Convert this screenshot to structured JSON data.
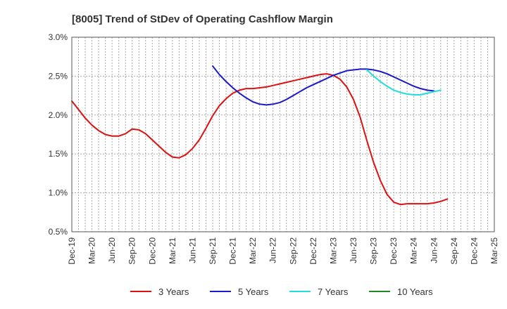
{
  "chart_data": {
    "type": "line",
    "title": "[8005]  Trend of StDev of Operating Cashflow Margin",
    "xlabel": "",
    "ylabel": "",
    "y_tick_labels": [
      "0.5%",
      "1.0%",
      "1.5%",
      "2.0%",
      "2.5%",
      "3.0%"
    ],
    "ylim": [
      0.5,
      3.0
    ],
    "x_tick_labels": [
      "Dec-19",
      "Mar-20",
      "Jun-20",
      "Sep-20",
      "Dec-20",
      "Mar-21",
      "Jun-21",
      "Sep-21",
      "Dec-21",
      "Mar-22",
      "Jun-22",
      "Sep-22",
      "Dec-22",
      "Mar-23",
      "Jun-23",
      "Sep-23",
      "Dec-23",
      "Mar-24",
      "Jun-24",
      "Sep-24",
      "Dec-24",
      "Mar-25"
    ],
    "xlim": [
      0,
      63
    ],
    "grid": true,
    "legend_position": "bottom",
    "series": [
      {
        "name": "3 Years",
        "color": "#dd1111",
        "points": [
          [
            0,
            2.18
          ],
          [
            1,
            2.07
          ],
          [
            2,
            1.96
          ],
          [
            3,
            1.87
          ],
          [
            4,
            1.8
          ],
          [
            5,
            1.75
          ],
          [
            6,
            1.73
          ],
          [
            7,
            1.73
          ],
          [
            8,
            1.76
          ],
          [
            9,
            1.82
          ],
          [
            10,
            1.81
          ],
          [
            11,
            1.76
          ],
          [
            12,
            1.68
          ],
          [
            13,
            1.6
          ],
          [
            14,
            1.52
          ],
          [
            15,
            1.46
          ],
          [
            16,
            1.45
          ],
          [
            17,
            1.49
          ],
          [
            18,
            1.57
          ],
          [
            19,
            1.68
          ],
          [
            20,
            1.83
          ],
          [
            21,
            1.99
          ],
          [
            22,
            2.12
          ],
          [
            23,
            2.21
          ],
          [
            24,
            2.28
          ],
          [
            25,
            2.32
          ],
          [
            26,
            2.34
          ],
          [
            27,
            2.34
          ],
          [
            28,
            2.35
          ],
          [
            29,
            2.36
          ],
          [
            30,
            2.38
          ],
          [
            31,
            2.4
          ],
          [
            32,
            2.42
          ],
          [
            33,
            2.44
          ],
          [
            34,
            2.46
          ],
          [
            35,
            2.48
          ],
          [
            36,
            2.5
          ],
          [
            37,
            2.52
          ],
          [
            38,
            2.53
          ],
          [
            39,
            2.51
          ],
          [
            40,
            2.46
          ],
          [
            41,
            2.36
          ],
          [
            42,
            2.2
          ],
          [
            43,
            1.97
          ],
          [
            44,
            1.67
          ],
          [
            45,
            1.39
          ],
          [
            46,
            1.16
          ],
          [
            47,
            0.98
          ],
          [
            48,
            0.88
          ],
          [
            49,
            0.85
          ],
          [
            50,
            0.86
          ],
          [
            51,
            0.86
          ],
          [
            52,
            0.86
          ],
          [
            53,
            0.86
          ],
          [
            54,
            0.87
          ],
          [
            55,
            0.89
          ],
          [
            56,
            0.92
          ]
        ]
      },
      {
        "name": "5 Years",
        "color": "#1a1acc",
        "points": [
          [
            21,
            2.63
          ],
          [
            22,
            2.52
          ],
          [
            23,
            2.43
          ],
          [
            24,
            2.35
          ],
          [
            25,
            2.28
          ],
          [
            26,
            2.22
          ],
          [
            27,
            2.17
          ],
          [
            28,
            2.14
          ],
          [
            29,
            2.13
          ],
          [
            30,
            2.14
          ],
          [
            31,
            2.16
          ],
          [
            32,
            2.2
          ],
          [
            33,
            2.25
          ],
          [
            34,
            2.3
          ],
          [
            35,
            2.35
          ],
          [
            36,
            2.39
          ],
          [
            37,
            2.43
          ],
          [
            38,
            2.47
          ],
          [
            39,
            2.51
          ],
          [
            40,
            2.54
          ],
          [
            41,
            2.57
          ],
          [
            42,
            2.58
          ],
          [
            43,
            2.59
          ],
          [
            44,
            2.59
          ],
          [
            45,
            2.58
          ],
          [
            46,
            2.56
          ],
          [
            47,
            2.53
          ],
          [
            48,
            2.49
          ],
          [
            49,
            2.45
          ],
          [
            50,
            2.41
          ],
          [
            51,
            2.37
          ],
          [
            52,
            2.34
          ],
          [
            53,
            2.32
          ],
          [
            54,
            2.31
          ]
        ]
      },
      {
        "name": "7 Years",
        "color": "#22dddd",
        "points": [
          [
            44,
            2.58
          ],
          [
            45,
            2.5
          ],
          [
            46,
            2.43
          ],
          [
            47,
            2.37
          ],
          [
            48,
            2.32
          ],
          [
            49,
            2.29
          ],
          [
            50,
            2.27
          ],
          [
            51,
            2.26
          ],
          [
            52,
            2.26
          ],
          [
            53,
            2.28
          ],
          [
            54,
            2.3
          ],
          [
            55,
            2.32
          ]
        ]
      },
      {
        "name": "10 Years",
        "color": "#228822",
        "points": []
      }
    ]
  }
}
